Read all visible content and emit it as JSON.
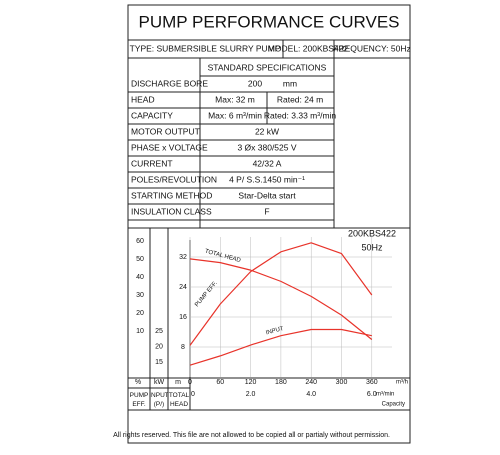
{
  "header": {
    "title": "PUMP PERFORMANCE CURVES",
    "type": "TYPE: SUBMERSIBLE  SLURRY  PUMP",
    "model": "MODEL: 200KBS422",
    "frequency": "FREQUENCY: 50Hz"
  },
  "specs": {
    "heading": "STANDARD SPECIFICATIONS",
    "rows": [
      [
        "DISCHARGE BORE",
        "200",
        "mm"
      ],
      [
        "HEAD",
        "Max: 32 m",
        "Rated: 24 m"
      ],
      [
        "CAPACITY",
        "Max: 6 m³/min",
        "Rated: 3.33 m³/min"
      ],
      [
        "MOTOR OUTPUT",
        "22  kW"
      ],
      [
        "PHASE x VOLTAGE",
        "3 Øx 380/525 V"
      ],
      [
        "CURRENT",
        "42/32 A"
      ],
      [
        "POLES/REVOLUTION",
        "4 P/ S.S.1450 min⁻¹"
      ],
      [
        "STARTING METHOD",
        "Star-Delta start"
      ],
      [
        "INSULATION CLASS",
        "F"
      ]
    ]
  },
  "chart_data": {
    "type": "line",
    "model_label": "200KBS422",
    "freq_label": "50Hz",
    "x": [
      0,
      60,
      120,
      180,
      240,
      300,
      360
    ],
    "xlim": [
      0,
      400
    ],
    "xticks": [
      0,
      60,
      120,
      180,
      240,
      300,
      360
    ],
    "x_unit": "m³/h",
    "x2ticks": [
      0,
      {
        "value": 120,
        "label": "2.0"
      },
      {
        "value": 240,
        "label": "4.0"
      },
      {
        "value": 360,
        "label": "6.0"
      }
    ],
    "x2_unit": "m³/min",
    "x_label": "Capacity",
    "ylim": [
      0,
      40
    ],
    "yticks": [
      32,
      24,
      16,
      8
    ],
    "eff_lim": [
      -15.6,
      67.8
    ],
    "eff_ticks": [
      60,
      50,
      40,
      30,
      20,
      10
    ],
    "kw_lim": [
      10.2,
      58.5
    ],
    "kw_ticks": [
      25,
      20,
      15
    ],
    "col_units": [
      "%",
      "kW",
      "m"
    ],
    "col_names": [
      "PUMP EFF.",
      "INPUT (P/)",
      "TOTAL HEAD"
    ],
    "series": [
      {
        "name": "TOTAL HEAD",
        "color": "#e8332a",
        "axis": "y",
        "values": [
          31.5,
          30.5,
          28.5,
          25.5,
          21.5,
          16.5,
          10
        ]
      },
      {
        "name": "PUMP EFF.",
        "color": "#e8332a",
        "axis": "eff",
        "values": [
          2,
          25,
          43,
          54,
          59,
          53,
          30
        ]
      },
      {
        "name": "INPUT",
        "color": "#e8332a",
        "axis": "kw",
        "values": [
          14,
          17,
          20.5,
          23.5,
          25.5,
          25.5,
          23.5
        ]
      }
    ],
    "grid": true
  },
  "footer": "All rights reserved. This file are not allowed to be copied all or partialy without permission."
}
